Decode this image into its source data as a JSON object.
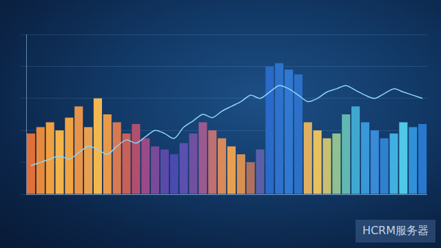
{
  "chart_data": {
    "type": "bar",
    "categories": [
      null,
      null,
      null,
      null,
      null,
      null,
      null,
      null,
      null,
      null,
      null,
      null,
      null,
      null,
      null,
      null,
      null,
      null,
      null,
      null,
      null,
      null,
      null,
      null,
      null,
      null,
      null,
      null,
      null,
      null,
      null,
      null,
      null,
      null,
      null,
      null,
      null,
      null,
      null,
      null,
      null,
      null
    ],
    "series": [
      {
        "type": "bar",
        "values": [
          38,
          42,
          45,
          40,
          48,
          55,
          42,
          60,
          50,
          45,
          38,
          44,
          35,
          30,
          28,
          25,
          32,
          38,
          45,
          40,
          35,
          30,
          25,
          20,
          28,
          80,
          82,
          78,
          75,
          45,
          40,
          35,
          38,
          50,
          55,
          45,
          40,
          35,
          38,
          45,
          42,
          44
        ],
        "colors": [
          "#e0703a",
          "#e88a3c",
          "#f0a040",
          "#f4b44a",
          "#f0a444",
          "#e89448",
          "#e8a050",
          "#f2b850",
          "#e89a4a",
          "#d87a50",
          "#c8605a",
          "#b05070",
          "#9a4a88",
          "#7a4a9a",
          "#5a4aa8",
          "#4a4ab0",
          "#5a50b0",
          "#7050a0",
          "#9a5a90",
          "#c07070",
          "#d88a5a",
          "#e8a050",
          "#d89050",
          "#b07060",
          "#5a60a8",
          "#2a6ac8",
          "#2e72cc",
          "#3078d0",
          "#2c70c8",
          "#e0b060",
          "#e8c060",
          "#c8c070",
          "#90c090",
          "#60b8b0",
          "#40a8d0",
          "#3898d8",
          "#3a8ad8",
          "#3080d0",
          "#40b0e0",
          "#50c8e8",
          "#3090d8",
          "#2878d0"
        ]
      },
      {
        "type": "line",
        "color": "#8fd8f8",
        "values": [
          18,
          20,
          22,
          24,
          22,
          26,
          30,
          28,
          25,
          30,
          34,
          32,
          36,
          40,
          38,
          35,
          42,
          46,
          50,
          48,
          52,
          55,
          58,
          62,
          60,
          64,
          68,
          66,
          62,
          58,
          60,
          64,
          66,
          68,
          65,
          62,
          60,
          63,
          66,
          64,
          62,
          60
        ]
      }
    ],
    "ylim": [
      0,
      100
    ],
    "yticks": [
      0,
      20,
      40,
      60,
      80,
      100
    ],
    "grid": true,
    "tick_labels": false,
    "annotations": [
      {
        "text": "HCRM服务器"
      }
    ]
  }
}
